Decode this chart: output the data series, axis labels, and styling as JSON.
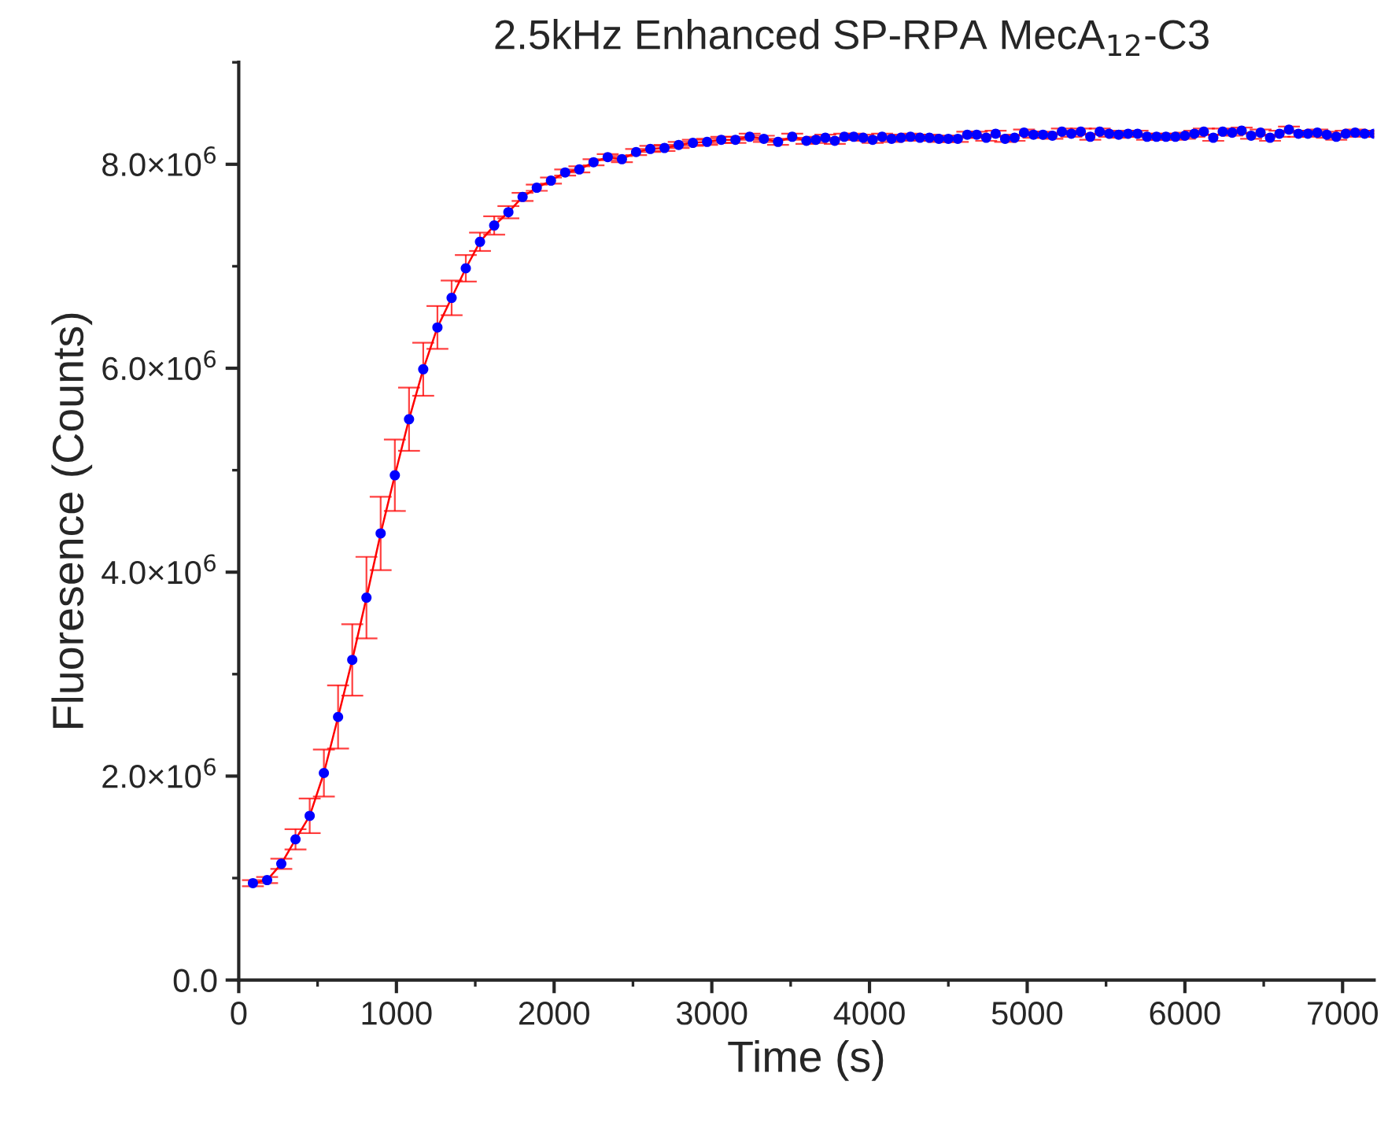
{
  "chart_data": {
    "type": "line",
    "title": "2.5kHz Enhanced SP-RPA MecA$_{12}$-C3",
    "xlabel": "Time (s)",
    "ylabel": "Fluoresence (Counts)",
    "x": [
      90,
      180,
      270,
      360,
      450,
      540,
      630,
      720,
      810,
      900,
      990,
      1080,
      1170,
      1260,
      1350,
      1440,
      1530,
      1620,
      1710,
      1800,
      1890,
      1980,
      2070,
      2160,
      2250,
      2340,
      2430,
      2520,
      2610,
      2700,
      2790,
      2880,
      2970,
      3060,
      3150,
      3240,
      3330,
      3420,
      3510,
      3600,
      3660,
      3720,
      3780,
      3840,
      3900,
      3960,
      4020,
      4080,
      4140,
      4200,
      4260,
      4320,
      4380,
      4440,
      4500,
      4560,
      4620,
      4680,
      4740,
      4800,
      4860,
      4920,
      4980,
      5040,
      5100,
      5160,
      5220,
      5280,
      5340,
      5400,
      5460,
      5520,
      5580,
      5640,
      5700,
      5760,
      5820,
      5880,
      5940,
      6000,
      6060,
      6120,
      6180,
      6240,
      6300,
      6360,
      6420,
      6480,
      6540,
      6600,
      6660,
      6720,
      6780,
      6840,
      6900,
      6960,
      7020,
      7080,
      7140,
      7200
    ],
    "series": [
      {
        "color": "#ff0000",
        "marker": "none",
        "values": [
          950000,
          980000,
          1140000,
          1380000,
          1610000,
          2030000,
          2580000,
          3140000,
          3750000,
          4380000,
          4950000,
          5500000,
          5990000,
          6400000,
          6690000,
          6980000,
          7240000,
          7400000,
          7530000,
          7680000,
          7770000,
          7840000,
          7920000,
          7950000,
          8020000,
          8070000,
          8050000,
          8120000,
          8150000,
          8160000,
          8190000,
          8210000,
          8220000,
          8240000,
          8240000,
          8270000,
          8250000,
          8220000,
          8270000,
          8230000,
          8240000,
          8260000,
          8230000,
          8270000,
          8270000,
          8260000,
          8240000,
          8270000,
          8250000,
          8260000,
          8270000,
          8260000,
          8260000,
          8250000,
          8250000,
          8250000,
          8290000,
          8290000,
          8260000,
          8300000,
          8250000,
          8260000,
          8310000,
          8290000,
          8290000,
          8280000,
          8320000,
          8300000,
          8320000,
          8270000,
          8320000,
          8300000,
          8290000,
          8300000,
          8300000,
          8270000,
          8270000,
          8270000,
          8270000,
          8280000,
          8300000,
          8320000,
          8260000,
          8320000,
          8310000,
          8330000,
          8280000,
          8310000,
          8260000,
          8300000,
          8340000,
          8300000,
          8300000,
          8310000,
          8290000,
          8270000,
          8300000,
          8310000,
          8300000,
          8300000
        ],
        "errors": [
          30000,
          30000,
          50000,
          100000,
          170000,
          230000,
          310000,
          350000,
          400000,
          360000,
          350000,
          310000,
          260000,
          210000,
          170000,
          130000,
          90000,
          90000,
          60000,
          40000,
          30000,
          30000,
          30000,
          30000,
          30000,
          30000,
          30000,
          30000,
          30000,
          30000,
          30000,
          30000,
          30000,
          30000,
          30000,
          30000,
          30000,
          30000,
          30000,
          30000,
          30000,
          30000,
          30000,
          30000,
          30000,
          30000,
          30000,
          30000,
          30000,
          30000,
          30000,
          30000,
          30000,
          30000,
          30000,
          30000,
          30000,
          30000,
          30000,
          30000,
          30000,
          30000,
          30000,
          30000,
          30000,
          30000,
          30000,
          30000,
          30000,
          30000,
          30000,
          30000,
          30000,
          30000,
          30000,
          30000,
          30000,
          30000,
          30000,
          30000,
          30000,
          30000,
          30000,
          30000,
          30000,
          30000,
          30000,
          30000,
          30000,
          30000,
          30000,
          30000,
          30000,
          30000,
          30000,
          30000,
          30000,
          30000,
          30000,
          30000
        ]
      },
      {
        "type": "scatter",
        "color": "#0000ff",
        "marker": "circle",
        "values": [
          950000,
          980000,
          1140000,
          1380000,
          1610000,
          2030000,
          2580000,
          3140000,
          3750000,
          4380000,
          4950000,
          5500000,
          5990000,
          6400000,
          6690000,
          6980000,
          7240000,
          7400000,
          7530000,
          7680000,
          7770000,
          7840000,
          7920000,
          7950000,
          8020000,
          8070000,
          8050000,
          8120000,
          8150000,
          8160000,
          8190000,
          8210000,
          8220000,
          8240000,
          8240000,
          8270000,
          8250000,
          8220000,
          8270000,
          8230000,
          8240000,
          8260000,
          8230000,
          8270000,
          8270000,
          8260000,
          8240000,
          8270000,
          8250000,
          8260000,
          8270000,
          8260000,
          8260000,
          8250000,
          8250000,
          8250000,
          8290000,
          8290000,
          8260000,
          8300000,
          8250000,
          8260000,
          8310000,
          8290000,
          8290000,
          8280000,
          8320000,
          8300000,
          8320000,
          8270000,
          8320000,
          8300000,
          8290000,
          8300000,
          8300000,
          8270000,
          8270000,
          8270000,
          8270000,
          8280000,
          8300000,
          8320000,
          8260000,
          8320000,
          8310000,
          8330000,
          8280000,
          8310000,
          8260000,
          8300000,
          8340000,
          8300000,
          8300000,
          8310000,
          8290000,
          8270000,
          8300000,
          8310000,
          8300000,
          8300000
        ]
      }
    ],
    "xlim": [
      0,
      7200
    ],
    "xticks": [
      0,
      1000,
      2000,
      3000,
      4000,
      5000,
      6000,
      7000
    ],
    "ylim": [
      0,
      9000000
    ],
    "yticks": [
      {
        "value": 0,
        "label": "0.0"
      },
      {
        "value": 2000000,
        "label": "2.0×10$^{6}$"
      },
      {
        "value": 4000000,
        "label": "4.0×10$^{6}$"
      },
      {
        "value": 6000000,
        "label": "6.0×10$^{6}$"
      },
      {
        "value": 8000000,
        "label": "8.0×10$^{6}$"
      }
    ],
    "grid": false
  }
}
